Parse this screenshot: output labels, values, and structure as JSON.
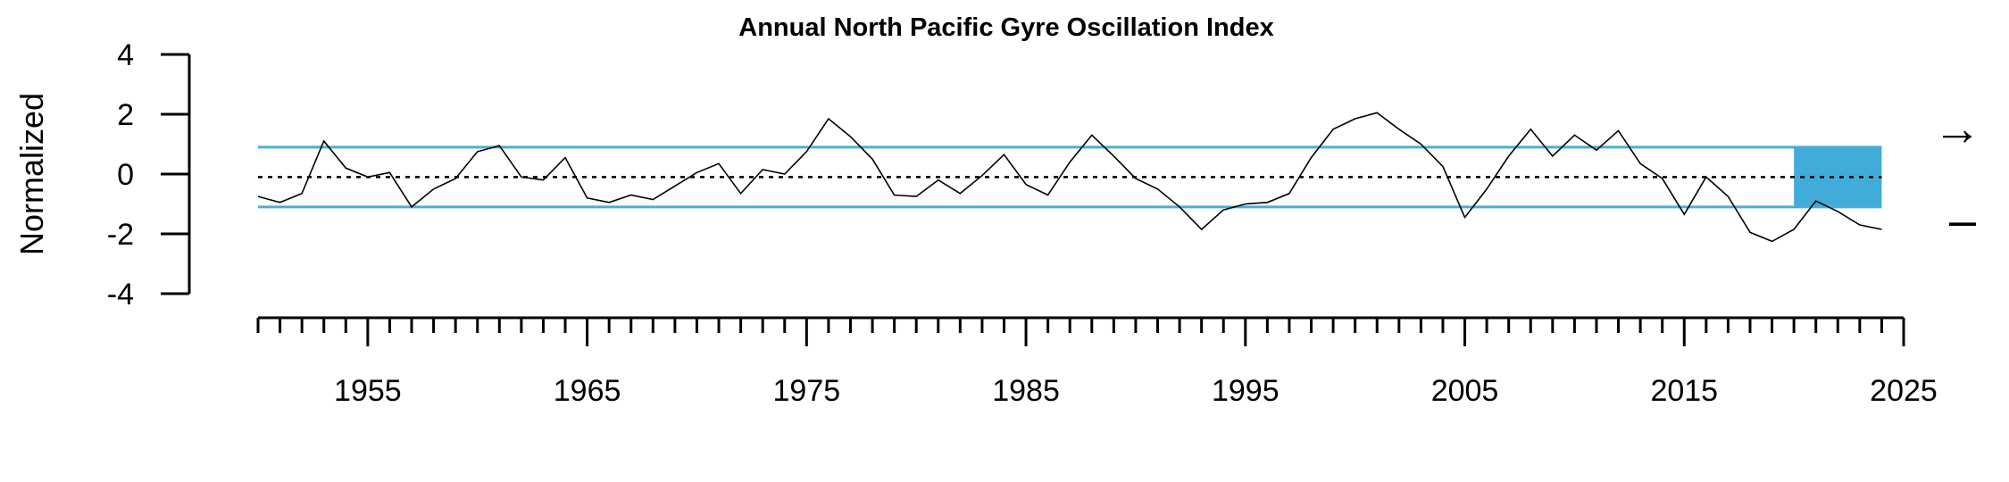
{
  "chart_data": {
    "type": "line",
    "title": "Annual North Pacific Gyre Oscillation Index",
    "ylabel": "Normalized",
    "xlabel": "",
    "xlim": [
      1950,
      2025
    ],
    "ylim": [
      -4,
      4
    ],
    "x_ticks_major": [
      1955,
      1965,
      1975,
      1985,
      1995,
      2005,
      2015,
      2025
    ],
    "x_tick_labels": [
      "1955",
      "1965",
      "1975",
      "1985",
      "1995",
      "2005",
      "2015",
      "2025"
    ],
    "y_ticks": [
      4,
      2,
      0,
      -2,
      -4
    ],
    "y_tick_labels": [
      "4",
      "2",
      "0",
      "-2",
      "-4"
    ],
    "grid": false,
    "series": [
      {
        "x": [
          1950,
          1951,
          1952,
          1953,
          1954,
          1955,
          1956,
          1957,
          1958,
          1959,
          1960,
          1961,
          1962,
          1963,
          1964,
          1965,
          1966,
          1967,
          1968,
          1969,
          1970,
          1971,
          1972,
          1973,
          1974,
          1975,
          1976,
          1977,
          1978,
          1979,
          1980,
          1981,
          1982,
          1983,
          1984,
          1985,
          1986,
          1987,
          1988,
          1989,
          1990,
          1991,
          1992,
          1993,
          1994,
          1995,
          1996,
          1997,
          1998,
          1999,
          2000,
          2001,
          2002,
          2003,
          2004,
          2005,
          2006,
          2007,
          2008,
          2009,
          2010,
          2011,
          2012,
          2013,
          2014,
          2015,
          2016,
          2017,
          2018,
          2019,
          2020,
          2021,
          2022,
          2023,
          2024
        ],
        "values": [
          -0.75,
          -0.95,
          -0.65,
          1.1,
          0.2,
          -0.1,
          0.05,
          -1.1,
          -0.5,
          -0.15,
          0.75,
          0.95,
          -0.1,
          -0.2,
          0.55,
          -0.8,
          -0.95,
          -0.7,
          -0.85,
          -0.4,
          0.05,
          0.35,
          -0.65,
          0.15,
          0.0,
          0.75,
          1.85,
          1.25,
          0.5,
          -0.7,
          -0.75,
          -0.2,
          -0.65,
          -0.05,
          0.65,
          -0.35,
          -0.7,
          0.4,
          1.3,
          0.6,
          -0.15,
          -0.5,
          -1.1,
          -1.85,
          -1.2,
          -1.0,
          -0.95,
          -0.65,
          0.55,
          1.5,
          1.85,
          2.05,
          1.5,
          1.0,
          0.25,
          -1.45,
          -0.5,
          0.6,
          1.5,
          0.6,
          1.3,
          0.8,
          1.45,
          0.35,
          -0.15,
          -1.35,
          -0.1,
          -0.75,
          -1.95,
          -2.25,
          -1.85,
          -0.9,
          -1.25,
          -1.7,
          -1.85
        ],
        "color": "#000000"
      }
    ],
    "reference_lines": {
      "mean": -0.1,
      "upper_sd": 0.9,
      "lower_sd": -1.1,
      "mean_style": "dotted",
      "sd_color": "#4BAED6"
    },
    "highlight_region": {
      "x_start": 2020,
      "x_end": 2024,
      "y_top": 0.9,
      "y_bottom": -1.1,
      "color": "#41ACD9"
    },
    "trend_indicators": {
      "recent_mean": "→",
      "recent_sd": "–"
    }
  }
}
